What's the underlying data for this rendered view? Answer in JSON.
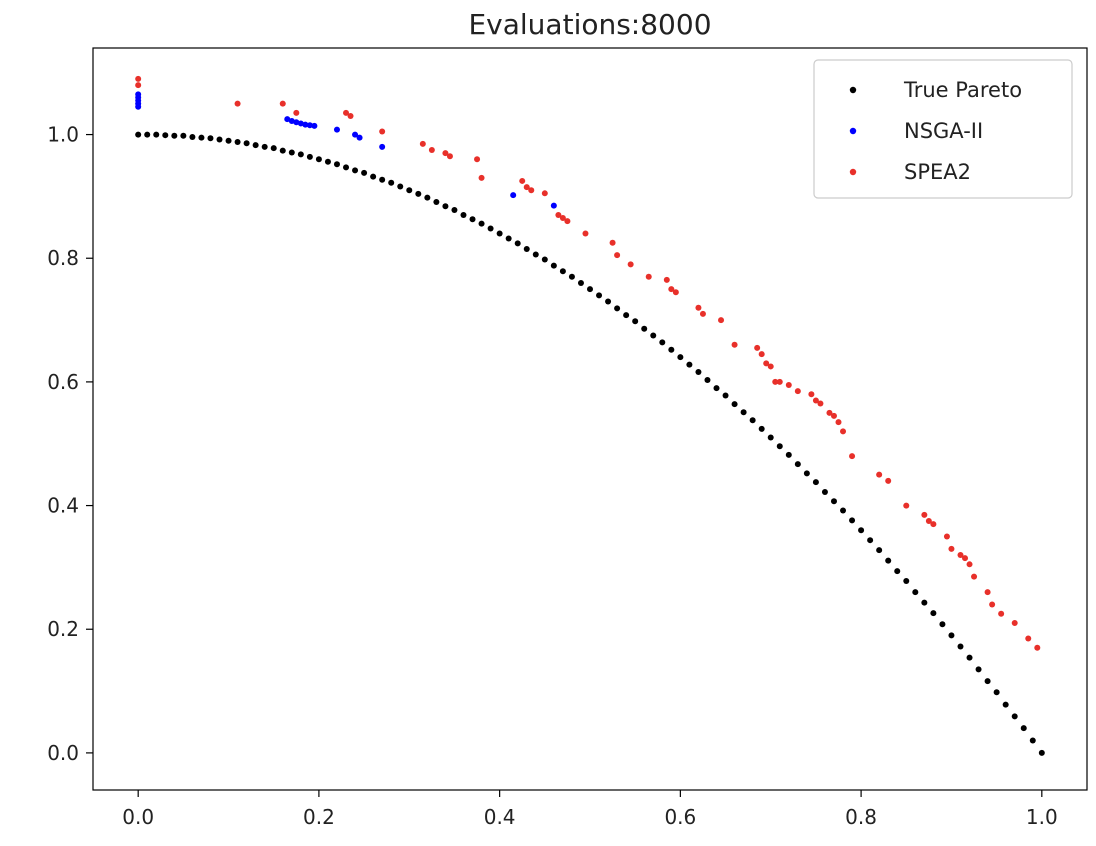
{
  "chart_data": {
    "type": "scatter",
    "title": "Evaluations:8000",
    "xlabel": "",
    "ylabel": "",
    "xlim": [
      -0.05,
      1.05
    ],
    "ylim": [
      -0.06,
      1.14
    ],
    "x_ticks": [
      0.0,
      0.2,
      0.4,
      0.6,
      0.8,
      1.0
    ],
    "x_tick_labels": [
      "0.0",
      "0.2",
      "0.4",
      "0.6",
      "0.8",
      "1.0"
    ],
    "y_ticks": [
      0.0,
      0.2,
      0.4,
      0.6,
      0.8,
      1.0
    ],
    "y_tick_labels": [
      "0.0",
      "0.2",
      "0.4",
      "0.6",
      "0.8",
      "1.0"
    ],
    "grid": false,
    "legend_position": "top-right",
    "series": [
      {
        "name": "True Pareto",
        "color": "#000000",
        "x": [
          0.0,
          0.01,
          0.02,
          0.03,
          0.04,
          0.05,
          0.06,
          0.07,
          0.08,
          0.09,
          0.1,
          0.11,
          0.12,
          0.13,
          0.14,
          0.15,
          0.16,
          0.17,
          0.18,
          0.19,
          0.2,
          0.21,
          0.22,
          0.23,
          0.24,
          0.25,
          0.26,
          0.27,
          0.28,
          0.29,
          0.3,
          0.31,
          0.32,
          0.33,
          0.34,
          0.35,
          0.36,
          0.37,
          0.38,
          0.39,
          0.4,
          0.41,
          0.42,
          0.43,
          0.44,
          0.45,
          0.46,
          0.47,
          0.48,
          0.49,
          0.5,
          0.51,
          0.52,
          0.53,
          0.54,
          0.55,
          0.56,
          0.57,
          0.58,
          0.59,
          0.6,
          0.61,
          0.62,
          0.63,
          0.64,
          0.65,
          0.66,
          0.67,
          0.68,
          0.69,
          0.7,
          0.71,
          0.72,
          0.73,
          0.74,
          0.75,
          0.76,
          0.77,
          0.78,
          0.79,
          0.8,
          0.81,
          0.82,
          0.83,
          0.84,
          0.85,
          0.86,
          0.87,
          0.88,
          0.89,
          0.9,
          0.91,
          0.92,
          0.93,
          0.94,
          0.95,
          0.96,
          0.97,
          0.98,
          0.99,
          1.0
        ],
        "y": [
          1.0,
          1.0,
          1.0,
          0.999,
          0.998,
          0.998,
          0.996,
          0.995,
          0.994,
          0.992,
          0.99,
          0.988,
          0.986,
          0.983,
          0.98,
          0.978,
          0.974,
          0.971,
          0.968,
          0.964,
          0.96,
          0.956,
          0.952,
          0.947,
          0.942,
          0.938,
          0.932,
          0.927,
          0.922,
          0.916,
          0.91,
          0.904,
          0.898,
          0.891,
          0.884,
          0.878,
          0.87,
          0.863,
          0.856,
          0.848,
          0.84,
          0.832,
          0.824,
          0.815,
          0.806,
          0.798,
          0.788,
          0.779,
          0.77,
          0.76,
          0.75,
          0.74,
          0.73,
          0.719,
          0.708,
          0.698,
          0.686,
          0.675,
          0.664,
          0.652,
          0.64,
          0.628,
          0.616,
          0.603,
          0.59,
          0.578,
          0.564,
          0.551,
          0.538,
          0.524,
          0.51,
          0.496,
          0.482,
          0.467,
          0.452,
          0.438,
          0.422,
          0.407,
          0.392,
          0.376,
          0.36,
          0.344,
          0.328,
          0.311,
          0.294,
          0.278,
          0.26,
          0.243,
          0.226,
          0.208,
          0.19,
          0.172,
          0.154,
          0.135,
          0.116,
          0.098,
          0.078,
          0.059,
          0.04,
          0.02,
          0.0
        ]
      },
      {
        "name": "NSGA-II",
        "color": "#0000ff",
        "x": [
          0.0,
          0.0,
          0.0,
          0.0,
          0.0,
          0.165,
          0.17,
          0.175,
          0.18,
          0.185,
          0.19,
          0.195,
          0.22,
          0.24,
          0.245,
          0.27,
          0.415,
          0.46
        ],
        "y": [
          1.045,
          1.05,
          1.055,
          1.06,
          1.065,
          1.025,
          1.022,
          1.02,
          1.018,
          1.016,
          1.015,
          1.014,
          1.008,
          1.0,
          0.995,
          0.98,
          0.902,
          0.885
        ]
      },
      {
        "name": "SPEA2",
        "color": "#e8302a",
        "x": [
          0.0,
          0.0,
          0.11,
          0.16,
          0.175,
          0.23,
          0.235,
          0.27,
          0.315,
          0.325,
          0.34,
          0.345,
          0.375,
          0.38,
          0.425,
          0.43,
          0.435,
          0.45,
          0.465,
          0.47,
          0.475,
          0.495,
          0.525,
          0.53,
          0.545,
          0.565,
          0.585,
          0.59,
          0.595,
          0.62,
          0.625,
          0.645,
          0.66,
          0.685,
          0.69,
          0.695,
          0.7,
          0.705,
          0.71,
          0.72,
          0.73,
          0.745,
          0.75,
          0.755,
          0.765,
          0.77,
          0.775,
          0.78,
          0.79,
          0.82,
          0.83,
          0.85,
          0.87,
          0.875,
          0.88,
          0.895,
          0.9,
          0.91,
          0.915,
          0.92,
          0.925,
          0.94,
          0.945,
          0.955,
          0.97,
          0.985,
          0.995
        ],
        "y": [
          1.09,
          1.08,
          1.05,
          1.05,
          1.035,
          1.035,
          1.03,
          1.005,
          0.985,
          0.975,
          0.97,
          0.965,
          0.96,
          0.93,
          0.925,
          0.915,
          0.91,
          0.905,
          0.87,
          0.865,
          0.86,
          0.84,
          0.825,
          0.805,
          0.79,
          0.77,
          0.765,
          0.75,
          0.745,
          0.72,
          0.71,
          0.7,
          0.66,
          0.655,
          0.645,
          0.63,
          0.625,
          0.6,
          0.6,
          0.595,
          0.585,
          0.58,
          0.57,
          0.565,
          0.55,
          0.545,
          0.535,
          0.52,
          0.48,
          0.45,
          0.44,
          0.4,
          0.385,
          0.375,
          0.37,
          0.35,
          0.33,
          0.32,
          0.315,
          0.305,
          0.285,
          0.26,
          0.24,
          0.225,
          0.21,
          0.185,
          0.17
        ]
      }
    ]
  }
}
